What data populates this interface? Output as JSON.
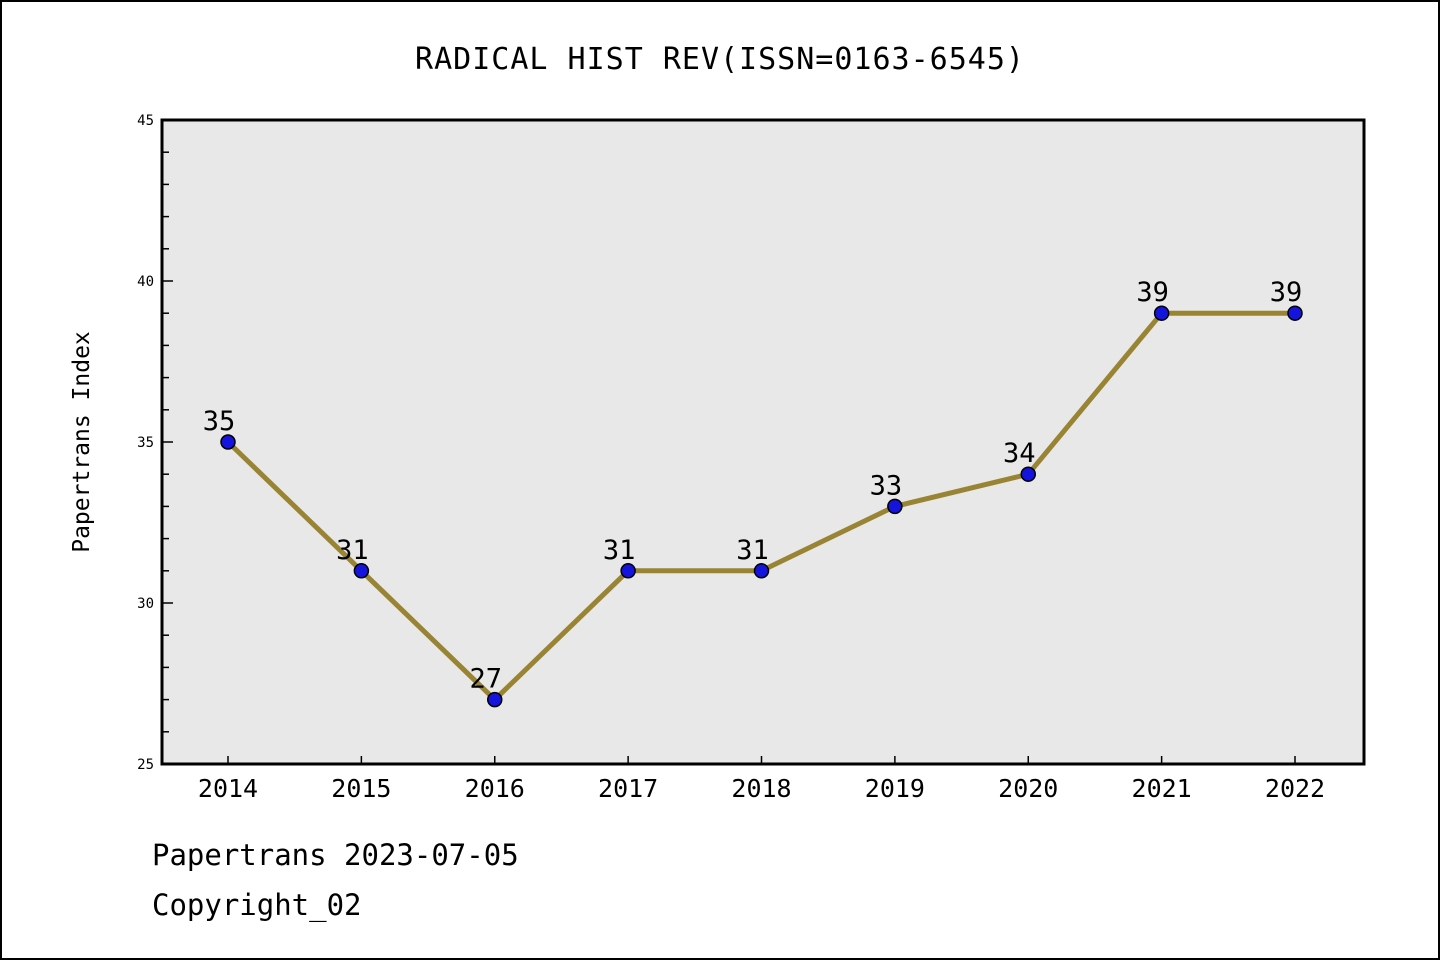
{
  "page": {
    "footer_line1": "Papertrans 2023-07-05",
    "footer_line2": "Copyright_02"
  },
  "chart_data": {
    "type": "line",
    "title": "RADICAL HIST REV(ISSN=0163-6545)",
    "xlabel": "",
    "ylabel": "Papertrans Index",
    "categories": [
      "2014",
      "2015",
      "2016",
      "2017",
      "2018",
      "2019",
      "2020",
      "2021",
      "2022"
    ],
    "values": [
      35,
      31,
      27,
      31,
      31,
      33,
      34,
      39,
      39
    ],
    "point_labels": [
      "35",
      "31",
      "27",
      "31",
      "31",
      "33",
      "34",
      "39",
      "39"
    ],
    "ylim": [
      25,
      45
    ],
    "yticks": [
      25,
      30,
      35,
      40,
      45
    ],
    "ytick_labels": [
      "25",
      "30",
      "35",
      "40",
      "45"
    ],
    "y_minor_step": 1,
    "grid": false,
    "legend": "none",
    "colors": {
      "line": "#998433",
      "marker": "#1414DD",
      "marker_edge": "#000000",
      "plot_bg": "#E8E8E8",
      "spine": "#000000",
      "text": "#000000"
    }
  }
}
